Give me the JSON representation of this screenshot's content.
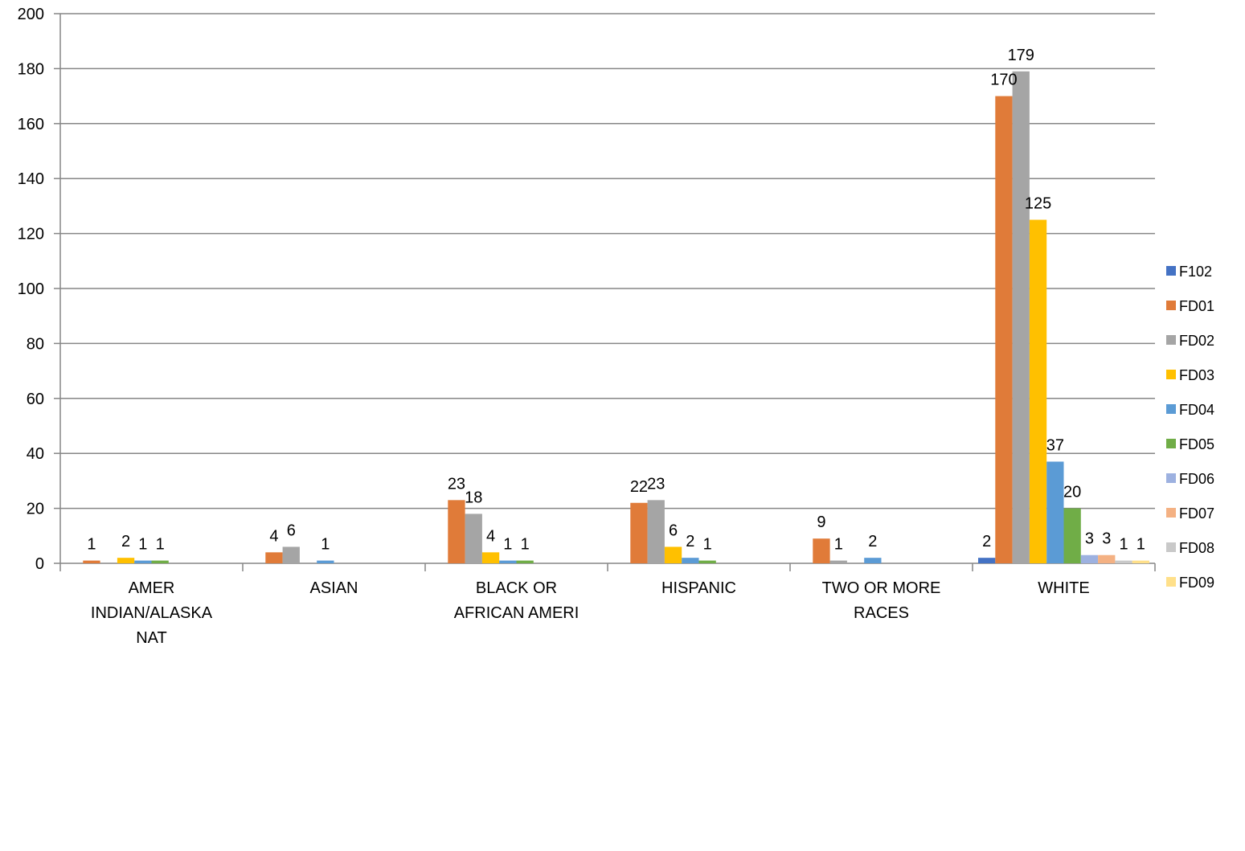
{
  "chart_data": {
    "type": "bar",
    "categories": [
      [
        "AMER",
        "INDIAN/ALASKA",
        "NAT"
      ],
      [
        "ASIAN"
      ],
      [
        "BLACK OR",
        "AFRICAN AMERI"
      ],
      [
        "HISPANIC"
      ],
      [
        "TWO OR MORE",
        "RACES"
      ],
      [
        "WHITE"
      ]
    ],
    "ylim": [
      0,
      200
    ],
    "yticks": [
      0,
      20,
      40,
      60,
      80,
      100,
      120,
      140,
      160,
      180,
      200
    ],
    "grid": true,
    "legend_position": "right",
    "series": [
      {
        "name": "F102",
        "color": "#4472C4",
        "values": [
          null,
          null,
          null,
          null,
          null,
          2
        ]
      },
      {
        "name": "FD01",
        "color": "#E07B39",
        "values": [
          1,
          4,
          23,
          22,
          9,
          170
        ]
      },
      {
        "name": "FD02",
        "color": "#A5A5A5",
        "values": [
          null,
          6,
          18,
          23,
          1,
          179
        ]
      },
      {
        "name": "FD03",
        "color": "#FFC000",
        "values": [
          2,
          null,
          4,
          6,
          null,
          125
        ]
      },
      {
        "name": "FD04",
        "color": "#5B9BD5",
        "values": [
          1,
          1,
          1,
          2,
          2,
          37
        ]
      },
      {
        "name": "FD05",
        "color": "#70AD47",
        "values": [
          1,
          null,
          1,
          1,
          null,
          20
        ]
      },
      {
        "name": "FD06",
        "color": "#9DB1E0",
        "values": [
          null,
          null,
          null,
          null,
          null,
          3
        ]
      },
      {
        "name": "FD07",
        "color": "#F4B183",
        "values": [
          null,
          null,
          null,
          null,
          null,
          3
        ]
      },
      {
        "name": "FD08",
        "color": "#C9C9C9",
        "values": [
          null,
          null,
          null,
          null,
          null,
          1
        ]
      },
      {
        "name": "FD09",
        "color": "#FFE08A",
        "values": [
          null,
          null,
          null,
          null,
          null,
          1
        ]
      }
    ]
  }
}
